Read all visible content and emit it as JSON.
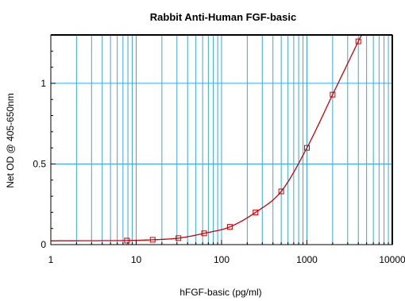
{
  "chart_data": {
    "type": "scatter",
    "title": "Rabbit Anti-Human FGF-basic",
    "xlabel": "hFGF-basic (pg/ml)",
    "ylabel": "Net OD @ 405-650nm",
    "x_scale": "log",
    "xlim": [
      1,
      10000
    ],
    "ylim": [
      0,
      1.3
    ],
    "x_ticks": [
      {
        "value": 1,
        "label": "1"
      },
      {
        "value": 10,
        "label": "10"
      },
      {
        "value": 100,
        "label": "100"
      },
      {
        "value": 1000,
        "label": "1000"
      },
      {
        "value": 10000,
        "label": "10000"
      }
    ],
    "y_ticks": [
      {
        "value": 0,
        "label": "0"
      },
      {
        "value": 0.5,
        "label": "0.5"
      },
      {
        "value": 1,
        "label": "1"
      }
    ],
    "grid": true,
    "series": [
      {
        "marker": "square",
        "color": "#cc0000",
        "x": [
          7.8,
          15.6,
          31.25,
          62.5,
          125,
          250,
          500,
          1000,
          2000,
          4000
        ],
        "y": [
          0.025,
          0.03,
          0.04,
          0.07,
          0.11,
          0.2,
          0.33,
          0.6,
          0.93,
          1.26
        ],
        "fit_curve": true
      }
    ],
    "colors": {
      "grid": "#33aadd",
      "frame": "#000000",
      "series": "#cc0000"
    }
  }
}
